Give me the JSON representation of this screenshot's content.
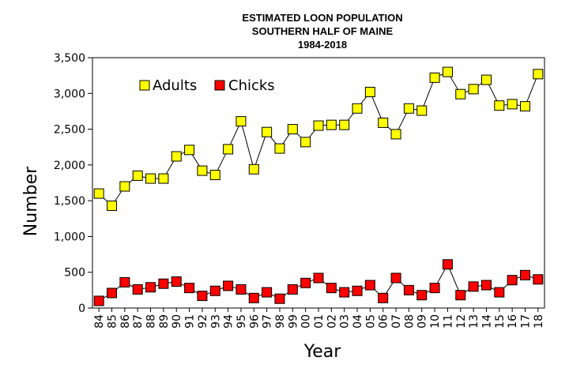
{
  "chart_data": {
    "type": "line",
    "title": [
      "ESTIMATED LOON POPULATION",
      "SOUTHERN HALF OF MAINE",
      "1984-2018"
    ],
    "xlabel": "Year",
    "ylabel": "Number",
    "ylim": [
      0,
      3500
    ],
    "yticks": [
      0,
      500,
      1000,
      1500,
      2000,
      2500,
      3000,
      3500
    ],
    "ytick_labels": [
      "0",
      "500",
      "1,000",
      "1,500",
      "2,000",
      "2,500",
      "3,000",
      "3,500"
    ],
    "grid": false,
    "legend_position": "top-left",
    "categories": [
      "84",
      "85",
      "86",
      "87",
      "88",
      "89",
      "90",
      "91",
      "92",
      "93",
      "94",
      "95",
      "96",
      "97",
      "98",
      "99",
      "00",
      "01",
      "02",
      "03",
      "04",
      "05",
      "06",
      "07",
      "08",
      "09",
      "10",
      "11",
      "12",
      "13",
      "14",
      "15",
      "16",
      "17",
      "18"
    ],
    "series": [
      {
        "name": "Adults",
        "color": "#ffff00",
        "values": [
          1600,
          1430,
          1700,
          1850,
          1810,
          1810,
          2120,
          2210,
          1920,
          1860,
          2220,
          2610,
          1940,
          2460,
          2230,
          2500,
          2320,
          2550,
          2560,
          2560,
          2790,
          3020,
          2590,
          2430,
          2790,
          2760,
          3220,
          3300,
          2990,
          3060,
          3190,
          2830,
          2850,
          2820,
          3270
        ]
      },
      {
        "name": "Chicks",
        "color": "#ff0000",
        "values": [
          100,
          210,
          360,
          260,
          290,
          340,
          370,
          280,
          170,
          240,
          310,
          260,
          140,
          220,
          130,
          260,
          350,
          420,
          280,
          220,
          240,
          320,
          140,
          420,
          250,
          180,
          280,
          610,
          180,
          300,
          320,
          220,
          390,
          460,
          400
        ]
      }
    ]
  }
}
